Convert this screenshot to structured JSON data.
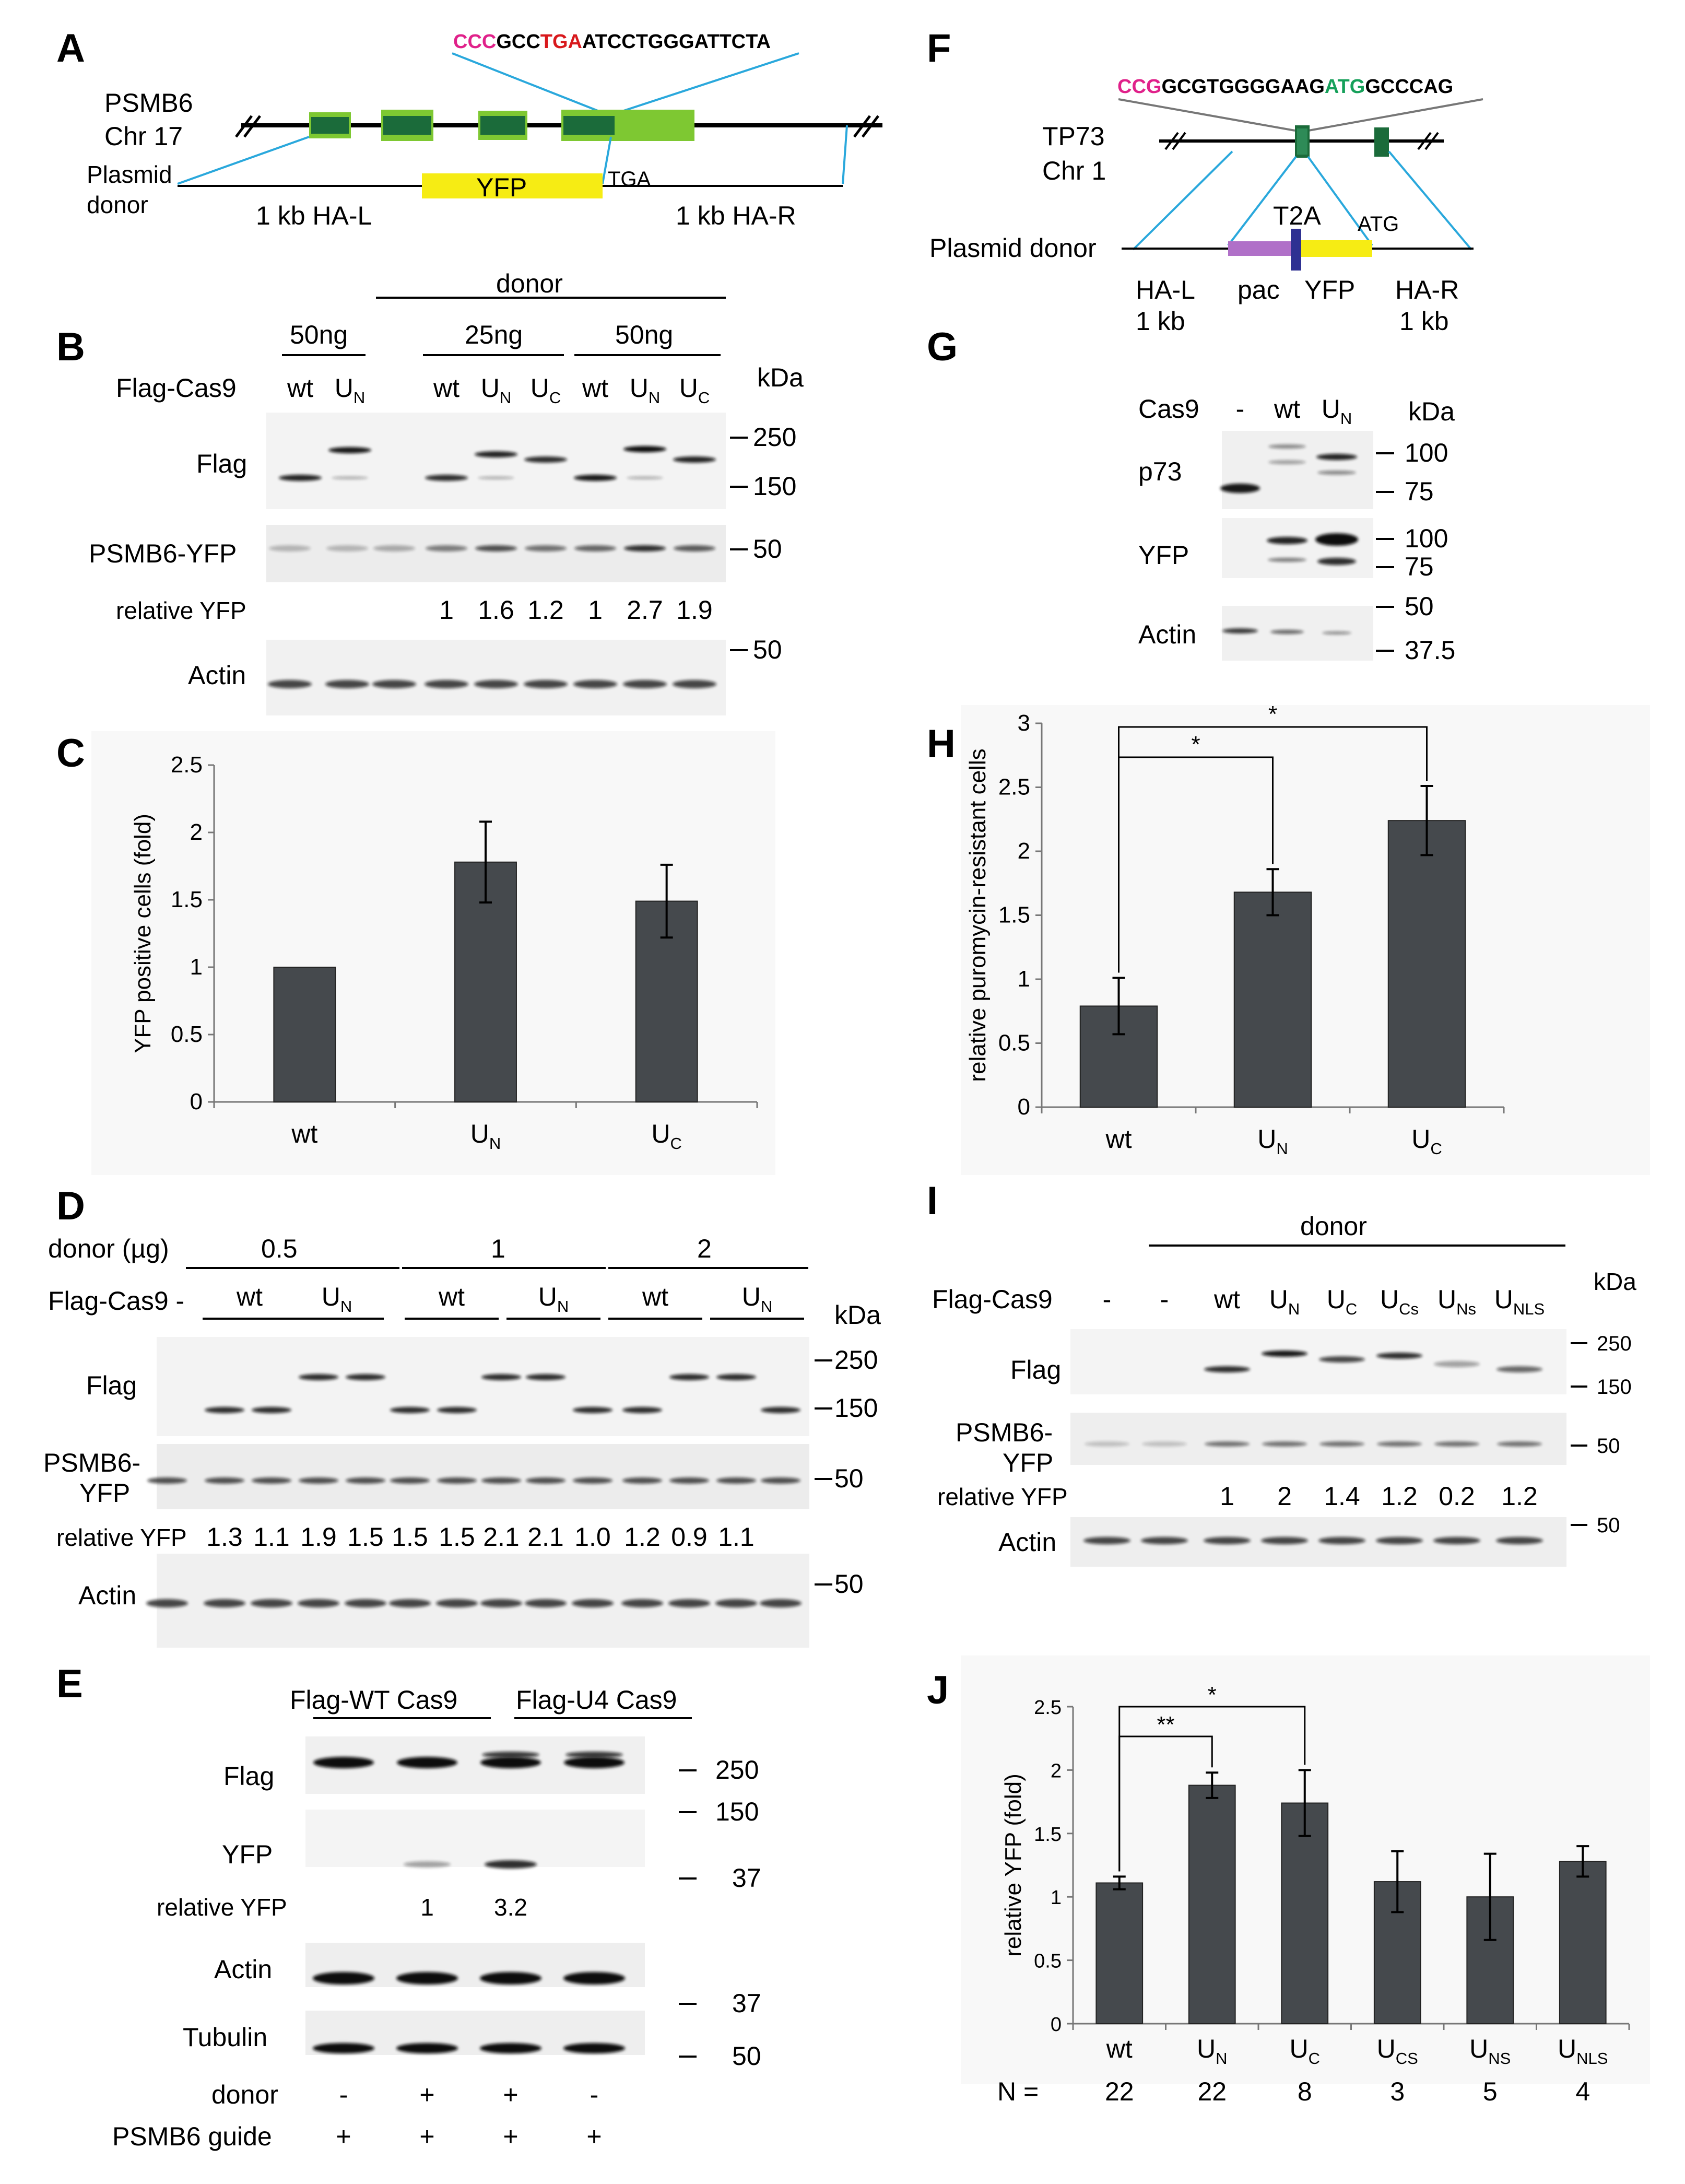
{
  "colors": {
    "bar": "#45494d",
    "accent_red": "#d8181c",
    "accent_pink": "#e0218a",
    "accent_green": "#16a05a",
    "exon_dark": "#1b6b3a",
    "exon_light": "#7ec832",
    "yfp_yellow": "#f6ec14",
    "pac_purple": "#b070c8",
    "t2a_blue": "#2e3192",
    "line_blue": "#2aa8dc"
  },
  "panels": {
    "A": {
      "letter": "A",
      "seq_pink": "CCC",
      "seq_mid": "GCC",
      "seq_red": "TGA",
      "seq_rest": "ATCCTGGGATTCTA",
      "gene": "PSMB6",
      "chromosome": "Chr 17",
      "plasmid_line1": "Plasmid",
      "plasmid_line2": "donor",
      "yfp": "YFP",
      "tga": "TGA",
      "ha_left": "1 kb HA-L",
      "ha_right": "1 kb HA-R"
    },
    "B": {
      "letter": "B",
      "donor": "donor",
      "amt1": "50ng",
      "amt2": "25ng",
      "amt3": "50ng",
      "cas9_label": "Flag-Cas9",
      "lanes": [
        "wt",
        "U",
        "wt",
        "U",
        "U",
        "wt",
        "U",
        "U"
      ],
      "lane_subs": [
        "",
        "N",
        "",
        "N",
        "C",
        "",
        "N",
        "C"
      ],
      "kda": "kDa",
      "rows": [
        "Flag",
        "PSMB6-YFP",
        "relative YFP",
        "Actin"
      ],
      "markers": [
        "250",
        "150",
        "50",
        "50"
      ],
      "relative_yfp": [
        "1",
        "1.6",
        "1.2",
        "1",
        "2.7",
        "1.9"
      ]
    },
    "C": {
      "letter": "C",
      "chart_data": {
        "type": "bar",
        "categories": [
          "wt",
          "U_N",
          "U_C"
        ],
        "values": [
          1.0,
          1.78,
          1.49
        ],
        "errors": [
          0,
          0.3,
          0.27
        ],
        "ylabel": "YFP positive cells (fold)",
        "ylim": [
          0,
          2.5
        ],
        "yticks": [
          "0",
          "0.5",
          "1",
          "1.5",
          "2",
          "2.5"
        ],
        "xlabels": [
          {
            "main": "wt",
            "sub": ""
          },
          {
            "main": "U",
            "sub": "N"
          },
          {
            "main": "U",
            "sub": "C"
          }
        ]
      }
    },
    "D": {
      "letter": "D",
      "donor_label": "donor (µg)",
      "amounts": [
        "0.5",
        "1",
        "2"
      ],
      "cas9_label": "Flag-Cas9 -",
      "groups": [
        {
          "main": "wt",
          "sub": ""
        },
        {
          "main": "U",
          "sub": "N"
        },
        {
          "main": "wt",
          "sub": ""
        },
        {
          "main": "U",
          "sub": "N"
        },
        {
          "main": "wt",
          "sub": ""
        },
        {
          "main": "U",
          "sub": "N"
        }
      ],
      "kda": "kDa",
      "flag": "Flag",
      "psmb_line1": "PSMB6-",
      "psmb_line2": "YFP",
      "rel_label": "relative YFP",
      "actin": "Actin",
      "relative_yfp": [
        "1.3",
        "1.1",
        "1.9",
        "1.5",
        "1.5",
        "1.5",
        "2.1",
        "2.1",
        "1.0",
        "1.2",
        "0.9",
        "1.1"
      ],
      "markers": [
        "250",
        "150",
        "50",
        "50"
      ]
    },
    "E": {
      "letter": "E",
      "group1": "Flag-WT Cas9",
      "group2": "Flag-U4 Cas9",
      "rows": [
        "Flag",
        "YFP",
        "relative YFP",
        "Actin",
        "Tubulin",
        "donor",
        "PSMB6 guide"
      ],
      "relative_yfp": [
        "1",
        "3.2"
      ],
      "donor_signs": [
        "-",
        "+",
        "+",
        "-"
      ],
      "guide_signs": [
        "+",
        "+",
        "+",
        "+"
      ],
      "markers": [
        "250",
        "150",
        "37",
        "37",
        "50"
      ]
    },
    "F": {
      "letter": "F",
      "seq_pink": "CCG",
      "seq_mid": "GCGTGGGGAAG",
      "seq_green": "ATG",
      "seq_rest": "GCCCAG",
      "gene": "TP73",
      "chromosome": "Chr 1",
      "plasmid": "Plasmid donor",
      "t2a": "T2A",
      "atg": "ATG",
      "ha_l": "HA-L",
      "kb1": "1 kb",
      "pac": "pac",
      "yfp": "YFP",
      "ha_r": "HA-R",
      "kb2": "1 kb"
    },
    "G": {
      "letter": "G",
      "cas9": "Cas9",
      "lanes": [
        "-",
        "wt",
        "U"
      ],
      "lane_subs": [
        "",
        "",
        "N"
      ],
      "kda": "kDa",
      "rows": [
        "p73",
        "YFP",
        "Actin"
      ],
      "markers": [
        "100",
        "75",
        "100",
        "75",
        "50",
        "37.5"
      ]
    },
    "H": {
      "letter": "H",
      "chart_data": {
        "type": "bar",
        "categories": [
          "wt",
          "U_N",
          "U_C"
        ],
        "values": [
          0.79,
          1.68,
          2.24
        ],
        "errors": [
          0.22,
          0.18,
          0.27
        ],
        "ylabel": "relative puromycin-resistant cells",
        "ylim": [
          0,
          3
        ],
        "yticks": [
          "0",
          "0.5",
          "1",
          "1.5",
          "2",
          "2.5",
          "3"
        ],
        "xlabels": [
          {
            "main": "wt",
            "sub": ""
          },
          {
            "main": "U",
            "sub": "N"
          },
          {
            "main": "U",
            "sub": "C"
          }
        ],
        "significance": [
          "*",
          "*"
        ]
      }
    },
    "I": {
      "letter": "I",
      "donor": "donor",
      "cas9_label": "Flag-Cas9",
      "lanes": [
        {
          "main": "-",
          "sub": ""
        },
        {
          "main": "-",
          "sub": ""
        },
        {
          "main": "wt",
          "sub": ""
        },
        {
          "main": "U",
          "sub": "N"
        },
        {
          "main": "U",
          "sub": "C"
        },
        {
          "main": "U",
          "sub": "Cs"
        },
        {
          "main": "U",
          "sub": "Ns"
        },
        {
          "main": "U",
          "sub": "NLS"
        }
      ],
      "kda": "kDa",
      "flag": "Flag",
      "psmb_line1": "PSMB6-",
      "psmb_line2": "YFP",
      "rel_label": "relative YFP",
      "actin": "Actin",
      "relative_yfp": [
        "1",
        "2",
        "1.4",
        "1.2",
        "0.2",
        "1.2"
      ],
      "markers": [
        "250",
        "150",
        "50",
        "50"
      ]
    },
    "J": {
      "letter": "J",
      "chart_data": {
        "type": "bar",
        "categories": [
          "wt",
          "U_N",
          "U_C",
          "U_CS",
          "U_NS",
          "U_NLS"
        ],
        "values": [
          1.11,
          1.88,
          1.74,
          1.12,
          1.0,
          1.28
        ],
        "errors": [
          0.05,
          0.1,
          0.26,
          0.24,
          0.34,
          0.12
        ],
        "ylabel": "relative YFP (fold)",
        "ylim": [
          0,
          2.5
        ],
        "yticks": [
          "0",
          "0.5",
          "1",
          "1.5",
          "2",
          "2.5"
        ],
        "xlabels": [
          {
            "main": "wt",
            "sub": ""
          },
          {
            "main": "U",
            "sub": "N"
          },
          {
            "main": "U",
            "sub": "C"
          },
          {
            "main": "U",
            "sub": "CS"
          },
          {
            "main": "U",
            "sub": "NS"
          },
          {
            "main": "U",
            "sub": "NLS"
          }
        ],
        "n_label": "N =",
        "n_values": [
          "22",
          "22",
          "8",
          "3",
          "5",
          "4"
        ],
        "significance": [
          "**",
          "*"
        ]
      }
    }
  }
}
